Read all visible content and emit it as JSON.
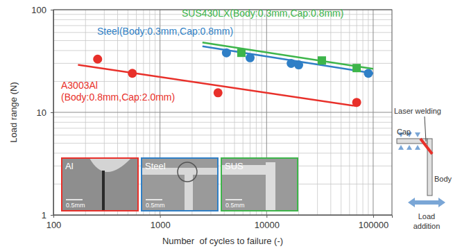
{
  "chart_data": {
    "type": "scatter",
    "log": true,
    "grid": true,
    "x_label": "Number  of cycles to failure (-)",
    "y_label": "Load range (N)",
    "xlim": [
      100,
      150000
    ],
    "ylim": [
      1,
      100
    ],
    "xticks": [
      100,
      1000,
      10000,
      100000
    ],
    "yticks": [
      1,
      10,
      100
    ],
    "xticks_minor": [
      200,
      300,
      400,
      500,
      600,
      700,
      800,
      900,
      2000,
      3000,
      4000,
      5000,
      6000,
      7000,
      8000,
      9000,
      20000,
      30000,
      40000,
      50000,
      60000,
      70000,
      80000,
      90000
    ],
    "yticks_minor": [
      2,
      3,
      4,
      5,
      6,
      7,
      8,
      9,
      20,
      30,
      40,
      50,
      60,
      70,
      80,
      90
    ],
    "series": [
      {
        "name": "A3003Al\n(Body:0.8mm,Cap:2.0mm)",
        "color": "#e8302a",
        "marker": "circle",
        "x": [
          260,
          550,
          3500,
          70000
        ],
        "values": [
          33,
          24,
          15.5,
          12.5
        ],
        "fit": {
          "x": [
            170,
            70000
          ],
          "values": [
            29,
            11.5
          ]
        }
      },
      {
        "name": "Steel(Body:0.3mm,Cap:0.8mm)",
        "color": "#2f7fc6",
        "marker": "circle",
        "x": [
          4200,
          7000,
          17000,
          20000,
          90000
        ],
        "values": [
          38,
          34,
          30,
          29,
          24
        ],
        "fit": {
          "x": [
            2500,
            100000
          ],
          "values": [
            44,
            24
          ]
        }
      },
      {
        "name": "SUS430LX(Body:0.3mm,Cap:0.8mm)",
        "color": "#3db54a",
        "marker": "square",
        "x": [
          5800,
          33000,
          70000
        ],
        "values": [
          38,
          32,
          27
        ],
        "fit": {
          "x": [
            2500,
            100000
          ],
          "values": [
            48,
            26.5
          ]
        }
      }
    ],
    "insets": [
      {
        "label": "Al",
        "scale_bar": "0.5mm",
        "color": "#e8302a"
      },
      {
        "label": "Steel",
        "scale_bar": "0.5mm",
        "color": "#2f7fc6"
      },
      {
        "label": "SUS",
        "scale_bar": "0.5mm",
        "color": "#3db54a"
      }
    ],
    "diagram": {
      "labels": [
        "Laser welding",
        "Cap",
        "Body",
        "Load\naddition"
      ]
    }
  }
}
